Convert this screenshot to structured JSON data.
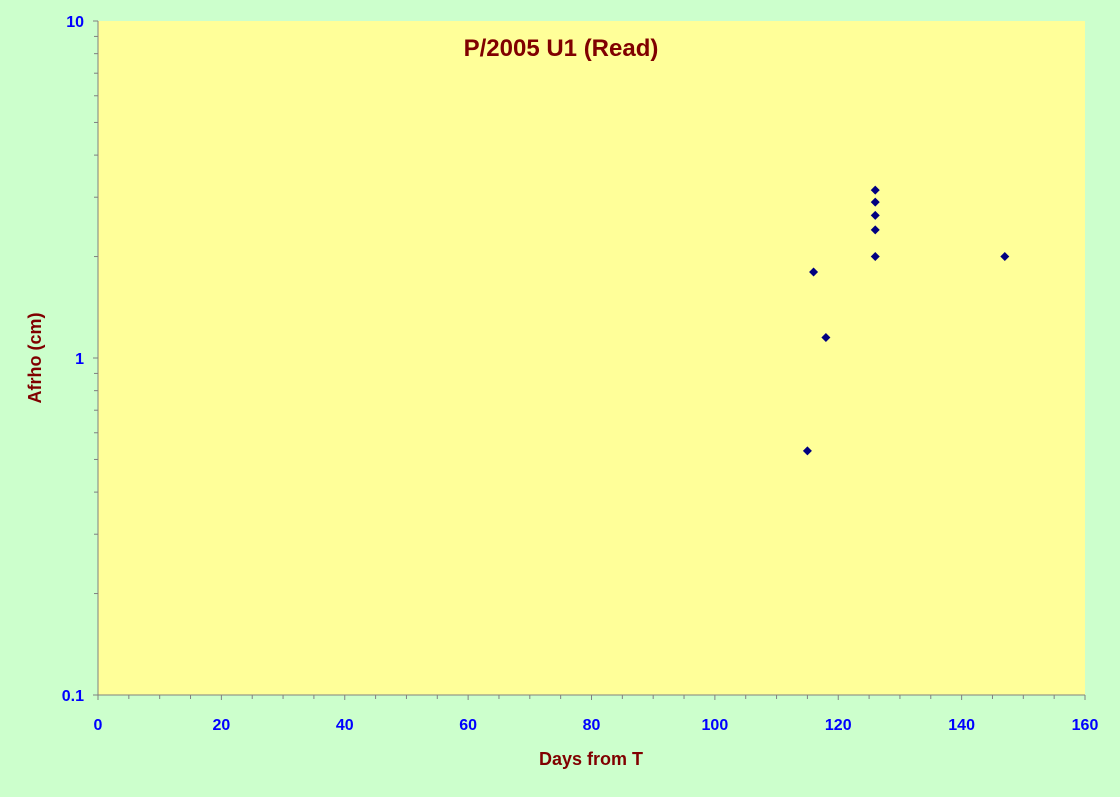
{
  "colors": {
    "background": "#ccffcc",
    "plot_area": "#ffff99",
    "title": "#800000",
    "axis_title": "#800000",
    "tick_label": "#0000ff",
    "marker": "#000080",
    "axis_line": "#808080"
  },
  "chart_data": {
    "type": "scatter",
    "title": "P/2005 U1 (Read)",
    "xlabel": "Days from T",
    "ylabel": "Afrho (cm)",
    "xlim": [
      0,
      160
    ],
    "ylim": [
      0.1,
      10
    ],
    "yscale": "log",
    "grid": false,
    "legend": "none",
    "marker": "diamond",
    "x_ticks": [
      "0",
      "20",
      "40",
      "60",
      "80",
      "100",
      "120",
      "140",
      "160"
    ],
    "y_ticks": [
      "0.1",
      "1",
      "10"
    ],
    "series": [
      {
        "points": [
          {
            "x": 115,
            "y": 0.53
          },
          {
            "x": 116,
            "y": 1.8
          },
          {
            "x": 118,
            "y": 1.15
          },
          {
            "x": 126,
            "y": 2.0
          },
          {
            "x": 126,
            "y": 2.4
          },
          {
            "x": 126,
            "y": 2.65
          },
          {
            "x": 126,
            "y": 2.9
          },
          {
            "x": 126,
            "y": 3.15
          },
          {
            "x": 147,
            "y": 2.0
          }
        ]
      }
    ]
  }
}
